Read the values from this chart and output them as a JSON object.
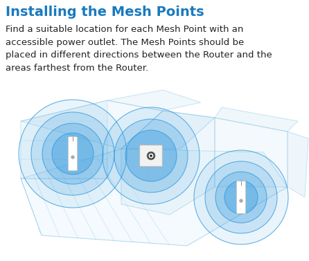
{
  "title": "Installing the Mesh Points",
  "title_color": "#1a7abf",
  "title_fontsize": 14,
  "body_text": "Find a suitable location for each Mesh Point with an\naccessible power outlet. The Mesh Points should be\nplaced in different directions between the Router and the\nareas farthest from the Router.",
  "body_fontsize": 9.5,
  "background_color": "#ffffff",
  "signal_color": "#3399dd",
  "floor_edge": "#55aadd",
  "fig_width": 4.46,
  "fig_height": 3.77,
  "dpi": 100
}
